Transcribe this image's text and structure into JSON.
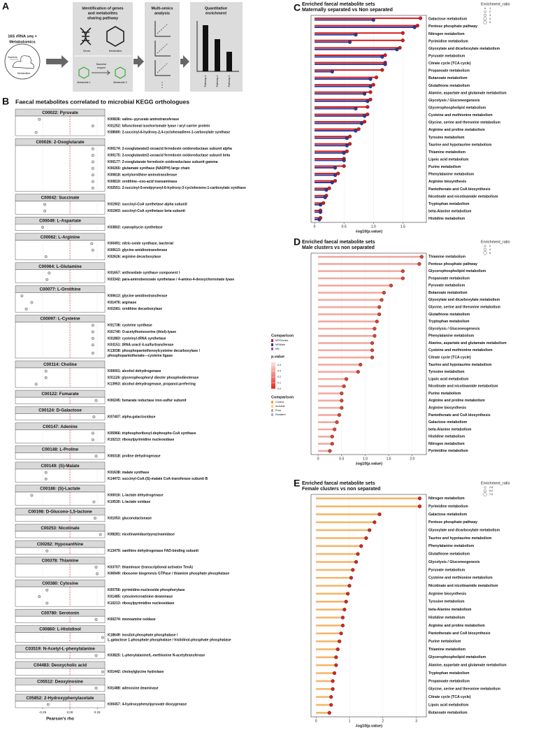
{
  "panel_labels": [
    "A",
    "B",
    "C",
    "D",
    "E"
  ],
  "panel_a": {
    "steps": [
      {
        "title": [
          "16S rRNA seq +",
          "Metabolomics"
        ]
      },
      {
        "title": [
          "Identification of genes",
          "and metabolites",
          "sharing pathway"
        ]
      },
      {
        "title": [
          "Multi-omics",
          "analysis"
        ]
      },
      {
        "title": [
          "Quantitative",
          "enrichment"
        ]
      }
    ],
    "labels": {
      "bacteria": "Bacteria",
      "metabolites": "Metabolites",
      "genes": "Genes",
      "metabolites2": "Metabolites",
      "metabolite1": "Metabolite 1",
      "enzyme": [
        "Bacterial",
        "enzyme"
      ],
      "metabolite2": "Metabolite 2",
      "pathways": [
        "Pathway 1",
        "Pathway 2",
        "Pathway 3"
      ]
    }
  },
  "legends": {
    "comparison_1": {
      "title": "Comparison",
      "items": [
        {
          "name": "MSFemale",
          "color": "#d7191c"
        },
        {
          "name": "MSMale",
          "color": "#2b3a9b"
        },
        {
          "name": "MS",
          "color": "#8e5fa8"
        }
      ]
    },
    "pvalue": {
      "title": "p.value",
      "lim": [
        0,
        0.45
      ],
      "ticks": [
        0.4,
        0.3,
        0.2,
        0.1,
        {
          "value": 0,
          "label": "0.0"
        }
      ]
    },
    "comparison_2": {
      "title": "Comparison",
      "items": [
        {
          "name": "Control",
          "color": "#f4a259"
        },
        {
          "name": "Invisible",
          "color": "#f6d55c"
        },
        {
          "name": "Pure",
          "color": "#e98aa7"
        },
        {
          "name": "Resilient",
          "color": "#8fb8de"
        }
      ]
    }
  },
  "chart_data": [
    {
      "type": "dot",
      "title": "Faecal metabolites correlated to microbial KEGG orthologues",
      "xlabel": "Pearson's rho",
      "xlim": [
        -0.5,
        0.32
      ],
      "xticks": [
        -0.25,
        {
          "value": 0,
          "label": "0.00"
        },
        0.25
      ],
      "reference_line": 0,
      "facets": [
        {
          "label": "C00022: Pyruvate",
          "genes": [
            "K00836: valine--pyruvate aminotransferase",
            "K01252: bifunctional isochorismate lyase / aryl carrier protein",
            "K08680: 2-succinyl-6-hydroxy-2,4-cyclohexadiene-1-carboxylate synthase"
          ],
          "values": [
            -0.28,
            0.21,
            -0.31
          ]
        },
        {
          "label": "C00026: 2-Oxoglutarate",
          "genes": [
            "K00174: 2-oxoglutarate/2-oxoacid ferredoxin oxidoreductase subunit alpha",
            "K00175: 2-oxoglutarate/2-oxoacid ferredoxin oxidoreductase subunit beta",
            "K00177: 2-oxoglutarate ferredoxin oxidoreductase subunit gamma",
            "K00265: glutamate synthase (NADPH) large chain",
            "K00818: acetylornithine aminotransferase",
            "K00819: ornithine--oxo-acid transaminase",
            "K02551: 2-succinyl-5-enolpyruvyl-6-hydroxy-3-cyclohexene-1-carboxylate synthase"
          ],
          "values": [
            0.21,
            0.21,
            0.21,
            0.21,
            0.21,
            0.21,
            0.21
          ]
        },
        {
          "label": "C00042: Succinate",
          "genes": [
            "K01902: succinyl-CoA synthetase alpha subunit",
            "K01903: succinyl-CoA synthetase beta subunit"
          ],
          "values": [
            -0.23,
            -0.23
          ]
        },
        {
          "label": "C00049: L-Aspartate",
          "genes": [
            "K03802: cyanophycin synthetase"
          ],
          "values": [
            -0.25
          ]
        },
        {
          "label": "C00062: L-Arginine",
          "genes": [
            "K00491: nitric-oxide synthase, bacterial",
            "K00613: glycine amidinotransferase",
            "K02626: arginine decarboxylase"
          ],
          "values": [
            0.2,
            0.21,
            -0.22
          ]
        },
        {
          "label": "C00064: L-Glutamine",
          "genes": [
            "K01657: anthranilate synthase component I",
            "K03342: para-aminobenzoate synthetase / 4-amino-4-deoxychorismate lyase"
          ],
          "values": [
            -0.19,
            -0.21
          ]
        },
        {
          "label": "C00077: L-Ornithine",
          "genes": [
            "K00613: glycine amidinotransferase",
            "K01476: arginase",
            "K01581: ornithine decarboxylase"
          ],
          "values": [
            -0.44,
            -0.35,
            -0.4
          ]
        },
        {
          "label": "C00097: L-Cysteine",
          "genes": [
            "K01738: cysteine synthase",
            "K01740: O-acetylhomoserine (thiol)-lyase",
            "K01883: cysteinyl-tRNA synthetase",
            "K03151: tRNA uracil 4-sulfurtransferase",
            [
              "K13038: phosphopantothenoylcysteine decarboxylase /",
              "phosphopantothenate---cysteine ligase"
            ]
          ],
          "values": [
            0.21,
            0.21,
            0.21,
            0.21,
            0.21
          ]
        },
        {
          "label": "C00114: Choline",
          "genes": [
            "K00001: alcohol dehydrogenase",
            "K01126: glycerophosphoryl diester phosphodiesterase",
            "K13953: alcohol dehydrogenase, propanol-preferring"
          ],
          "values": [
            -0.22,
            -0.22,
            -0.31
          ]
        },
        {
          "label": "C00122: Fumarate",
          "genes": [
            "K00245: fumarate reductase iron-sulfur subunit"
          ],
          "values": [
            0.24
          ]
        },
        {
          "label": "C00124: D-Galactose",
          "genes": [
            "K07407: alpha-galactosidase"
          ],
          "values": [
            0.22
          ]
        },
        {
          "label": "C00147: Adenine",
          "genes": [
            "K05966: triphosphoribosyl-dephospho-CoA synthase",
            "K10213: ribosylpyrimidine nucleosidase"
          ],
          "values": [
            0.21,
            0.21
          ]
        },
        {
          "label": "C00148: L-Proline",
          "genes": [
            "K00318: proline dehydrogenase"
          ],
          "values": [
            0.24
          ]
        },
        {
          "label": "C00149: (S)-Malate",
          "genes": [
            "K01638: malate synthase",
            "K14472: succinyl-CoA:(S)-malate CoA-transferase subunit B"
          ],
          "values": [
            -0.22,
            -0.22
          ]
        },
        {
          "label": "C00186: (S)-Lactate",
          "genes": [
            "K00016: L-lactate dehydrogenase",
            "K10530: L-lactate oxidase"
          ],
          "values": [
            -0.35,
            0.22
          ]
        },
        {
          "label": "C00198: D-Glucono-1,5-lactone",
          "genes": [
            "K01053: gluconolactonase"
          ],
          "values": [
            0.23
          ]
        },
        {
          "label": "C00253: Nicotinate",
          "genes": [
            "K08281: nicotinamidase/pyrazinamidase"
          ],
          "values": [
            0.28
          ]
        },
        {
          "label": "C00262: Hypoxanthine",
          "genes": [
            "K13479: xanthine dehydrogenase FAD-binding subunit"
          ],
          "values": [
            -0.21
          ]
        },
        {
          "label": "C00378: Thiamine",
          "genes": [
            "K03707: thiaminase (transcriptional activator TenA)",
            "K06949: ribosome biogenesis GTPase / thiamine phosphate phosphatase"
          ],
          "values": [
            0.24,
            0.25
          ]
        },
        {
          "label": "C00380: Cytosine",
          "genes": [
            "K00756: pyrimidine-nucleoside phosphorylase",
            "K01485: cytosine/creatinine deaminase",
            "K10213: ribosylpyrimidine nucleosidase"
          ],
          "values": [
            -0.21,
            -0.28,
            -0.21
          ]
        },
        {
          "label": "C00780: Serotonin",
          "genes": [
            "K00274: monoamine oxidase"
          ],
          "values": [
            0.24
          ]
        },
        {
          "label": "C00860: L-Histidinol",
          "genes": [
            [
              "K18649: inositol-phosphate phosphatase /",
              "L-galactose 1-phosphate phosphatase / histidinol-phosphate phosphatase"
            ]
          ],
          "values": [
            0.3
          ]
        },
        {
          "label": "C03519: N-Acetyl-L-phenylalanine",
          "genes": [
            "K03825: L-phenylalanine/L-methionine N-acetyltransferase"
          ],
          "values": [
            0.24
          ]
        },
        {
          "label": "C04483: Deoxycholic acid",
          "genes": [
            "K01442: choloylglycine hydrolase"
          ],
          "values": [
            0.3
          ]
        },
        {
          "label": "C05512: Deoxyinosine",
          "genes": [
            "K01488: adenosine deaminase"
          ],
          "values": [
            0.24
          ]
        },
        {
          "label": "C05852: 2-Hydroxyphenylacetate",
          "genes": [
            "K00457: 4-hydroxyphenylpyruvate dioxygenase"
          ],
          "values": [
            -0.2
          ]
        }
      ]
    },
    {
      "type": "lollipop",
      "title": "Enriched faecal metabolite sets",
      "subtitle": "Maternally separated vs Non separated",
      "xlabel": "-log10(p.value)",
      "xlim": [
        -0.06,
        1.9
      ],
      "xticks": [
        0,
        0.5,
        {
          "value": 1,
          "label": "1.0"
        },
        1.5
      ],
      "categories": [
        "Galactose metabolism",
        "Pentose phosphate pathway",
        "Nitrogen metabolism",
        "Pyrimidine metabolism",
        "Glyoxylate and dicarboxylate metabolism",
        "Pyruvate metabolism",
        "Citrate cycle (TCA cycle)",
        "Propanoate metabolism",
        "Butanoate metabolism",
        "Glutathione metabolism",
        "Alanine, aspartate and glutamate metabolism",
        "Glycolysis / Gluconeogenesis",
        "Glycerophospholipid metabolism",
        "Cysteine and methionine metabolism",
        "Glycine, serine and threonine metabolism",
        "Arginine and proline metabolism",
        "Tyrosine metabolism",
        "Taurine and hypotaurine metabolism",
        "Thiamine metabolism",
        "Lipoic acid metabolism",
        "Purine metabolism",
        "Phenylalanine metabolism",
        "Arginine biosynthesis",
        "Pantothenate and CoA biosynthesis",
        "Nicotinate and nicotinamide metabolism",
        "Tryptophan metabolism",
        "beta-Alanine metabolism",
        "Histidine metabolism"
      ],
      "series": [
        {
          "color": "#d7191c",
          "values": [
            1.8,
            1.75,
            1.5,
            1.5,
            1.45,
            1.2,
            1.2,
            1.15,
            1.05,
            1.0,
            0.95,
            0.95,
            0.9,
            0.9,
            0.85,
            0.75,
            0.6,
            0.6,
            0.55,
            0.5,
            0.5,
            0.4,
            0.35,
            0.25,
            0.2,
            0.15,
            0.1,
            0.1
          ]
        },
        {
          "color": "#2b3a9b",
          "values": [
            1.0,
            1.7,
            0.7,
            0.6,
            1.4,
            1.15,
            1.2,
            0.3,
            0.95,
            0.95,
            0.85,
            0.9,
            0.7,
            0.85,
            0.8,
            0.7,
            0.55,
            0.55,
            0.5,
            0.5,
            0.35,
            0.35,
            0.3,
            0.2,
            0.18,
            0.1,
            0.1,
            0.08
          ]
        }
      ],
      "size_legend": {
        "title": "Enrichment_ratio",
        "values": [
          1,
          2,
          3,
          4,
          5
        ]
      }
    },
    {
      "type": "lollipop",
      "title": "Enriched faecal metabolite sets",
      "subtitle": "Male clusters vs non separated",
      "xlabel": "-log10(p.value)",
      "xlim": [
        -0.15,
        2.3
      ],
      "xticks": [
        0,
        0.5,
        {
          "value": 1,
          "label": "1.0"
        },
        1.5,
        {
          "value": 2,
          "label": "2.0"
        }
      ],
      "categories": [
        "Thiamine metabolism",
        "Pentose phosphate pathway",
        "Glycerophospholipid metabolism",
        "Propanoate metabolism",
        "Pyruvate metabolism",
        "Butanoate metabolism",
        "Glyoxylate and dicarboxylate metabolism",
        "Glycine, serine and threonine metabolism",
        "Glutathione metabolism",
        "Tryptophan metabolism",
        "Glycolysis / Gluconeogenesis",
        "Phenylalanine metabolism",
        "Alanine, aspartate and glutamate metabolism",
        "Cysteine and methionine metabolism",
        "Citrate cycle (TCA cycle)",
        "Taurine and hypotaurine metabolism",
        "Tyrosine metabolism",
        "Lipoic acid metabolism",
        "Nicotinate and nicotinamide metabolism",
        "Purine metabolism",
        "Arginine and proline metabolism",
        "Arginine biosynthesis",
        "Pantothenate and CoA biosynthesis",
        "Galactose metabolism",
        "beta-Alanine metabolism",
        "Histidine metabolism",
        "Nitrogen metabolism",
        "Pyrimidine metabolism"
      ],
      "series": [
        {
          "color": "#e0412f",
          "values": [
            2.2,
            2.15,
            1.8,
            1.8,
            1.55,
            1.4,
            1.35,
            1.3,
            1.3,
            1.25,
            1.2,
            1.2,
            1.15,
            1.15,
            1.15,
            0.9,
            0.85,
            0.6,
            0.55,
            0.5,
            0.5,
            0.5,
            0.45,
            0.4,
            0.35,
            0.3,
            0.3,
            0.25
          ]
        }
      ],
      "line_color": "#f2a9a0",
      "size_legend": {
        "title": "Enrichment_ratio",
        "values": [
          2,
          4,
          6
        ]
      }
    },
    {
      "type": "lollipop",
      "title": "Enriched faecal metabolite sets",
      "subtitle": "Female clusters vs non separated",
      "xlabel": "-log10(p.value)",
      "xlim": [
        -0.15,
        3.3
      ],
      "xticks": [
        0,
        1,
        2,
        3
      ],
      "categories": [
        "Nitrogen metabolism",
        "Pyrimidine metabolism",
        "Galactose metabolism",
        "Pentose phosphate pathway",
        "Glyoxylate and dicarboxylate metabolism",
        "Taurine and hypotaurine metabolism",
        "Phenylalanine metabolism",
        "Glutathione metabolism",
        "Glycolysis / Gluconeogenesis",
        "Pyruvate metabolism",
        "Cysteine and methionine metabolism",
        "Nicotinate and nicotinamide metabolism",
        "Arginine biosynthesis",
        "Tyrosine metabolism",
        "beta-Alanine metabolism",
        "Histidine metabolism",
        "Arginine and proline metabolism",
        "Pantothenate and CoA biosynthesis",
        "Purine metabolism",
        "Thiamine metabolism",
        "Glycerophospholipid metabolism",
        "Alanine, aspartate and glutamate metabolism",
        "Tryptophan metabolism",
        "Propanoate metabolism",
        "Glycine, serine and threonine metabolism",
        "Citrate cycle (TCA cycle)",
        "Lipoic acid metabolism",
        "Butanoate metabolism"
      ],
      "series": [
        {
          "color": "#d9251b",
          "values": [
            3.1,
            3.1,
            1.9,
            1.75,
            1.6,
            1.5,
            1.35,
            1.25,
            1.2,
            1.1,
            1.05,
            1.0,
            0.95,
            0.9,
            0.85,
            0.8,
            0.8,
            0.75,
            0.7,
            0.65,
            0.6,
            0.6,
            0.55,
            0.5,
            0.5,
            0.45,
            0.45,
            0.4
          ]
        }
      ],
      "line_color": "#f6b56b",
      "size_legend": {
        "title": "Enrichment_ratio",
        "values": [
          2.5,
          {
            "value": 5,
            "label": "5.0"
          },
          7.5
        ]
      }
    }
  ]
}
